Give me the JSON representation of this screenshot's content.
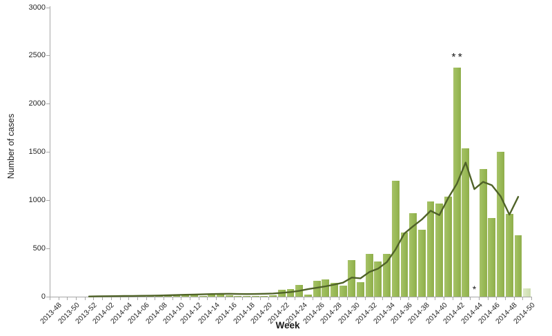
{
  "chart_data": {
    "type": "combo-bar-line",
    "xlabel": "Week",
    "ylabel": "Number of cases",
    "ylim": [
      0,
      3000
    ],
    "yticks": [
      0,
      500,
      1000,
      1500,
      2000,
      2500,
      3000
    ],
    "x_tick_label_every": 2,
    "grid": false,
    "legend": "none",
    "categories": [
      "2013-48",
      "2013-49",
      "2013-50",
      "2013-51",
      "2013-52",
      "2014-01",
      "2014-02",
      "2014-03",
      "2014-04",
      "2014-05",
      "2014-06",
      "2014-07",
      "2014-08",
      "2014-09",
      "2014-10",
      "2014-11",
      "2014-12",
      "2014-13",
      "2014-14",
      "2014-15",
      "2014-16",
      "2014-17",
      "2014-18",
      "2014-19",
      "2014-20",
      "2014-21",
      "2014-22",
      "2014-23",
      "2014-24",
      "2014-25",
      "2014-26",
      "2014-27",
      "2014-28",
      "2014-29",
      "2014-30",
      "2014-31",
      "2014-32",
      "2014-33",
      "2014-34",
      "2014-35",
      "2014-36",
      "2014-37",
      "2014-38",
      "2014-39",
      "2014-40",
      "2014-41",
      "2014-42",
      "2014-43",
      "2014-44",
      "2014-45",
      "2014-46",
      "2014-47",
      "2014-48",
      "2014-49",
      "2014-50"
    ],
    "series": [
      {
        "id": "bars",
        "type": "bar",
        "color": "#9bbb59",
        "provisional_color": "#d6e4bc",
        "provisional_weeks": [
          "2014-50"
        ],
        "values": [
          0,
          0,
          1,
          1,
          2,
          3,
          4,
          5,
          6,
          6,
          5,
          8,
          10,
          12,
          18,
          20,
          18,
          10,
          22,
          38,
          12,
          8,
          8,
          10,
          10,
          12,
          73,
          77,
          120,
          24,
          163,
          178,
          143,
          113,
          382,
          148,
          440,
          362,
          442,
          1205,
          668,
          866,
          692,
          990,
          965,
          1035,
          2375,
          1540,
          0,
          1325,
          818,
          1500,
          860,
          640,
          85
        ]
      },
      {
        "id": "line",
        "type": "line",
        "color": "#4f6228",
        "values": [
          null,
          null,
          null,
          null,
          2,
          4,
          5,
          6,
          7,
          8,
          9,
          10,
          12,
          14,
          17,
          20,
          22,
          24,
          27,
          29,
          30,
          28,
          27,
          28,
          30,
          33,
          40,
          48,
          60,
          78,
          92,
          107,
          125,
          145,
          198,
          190,
          255,
          290,
          358,
          490,
          655,
          730,
          800,
          890,
          845,
          1020,
          1170,
          1390,
          1115,
          1190,
          1155,
          1040,
          850,
          1035,
          null
        ]
      }
    ],
    "annotations": [
      {
        "text": "**",
        "week": "2014-42",
        "placement": "above-bar"
      },
      {
        "text": "*",
        "week": "2014-44",
        "placement": "above-axis"
      }
    ]
  },
  "colors": {
    "bar": "#9bbb59",
    "bar_provisional": "#d6e4bc",
    "line": "#4f6228",
    "axis": "#a6a6a6",
    "text": "#262626"
  }
}
